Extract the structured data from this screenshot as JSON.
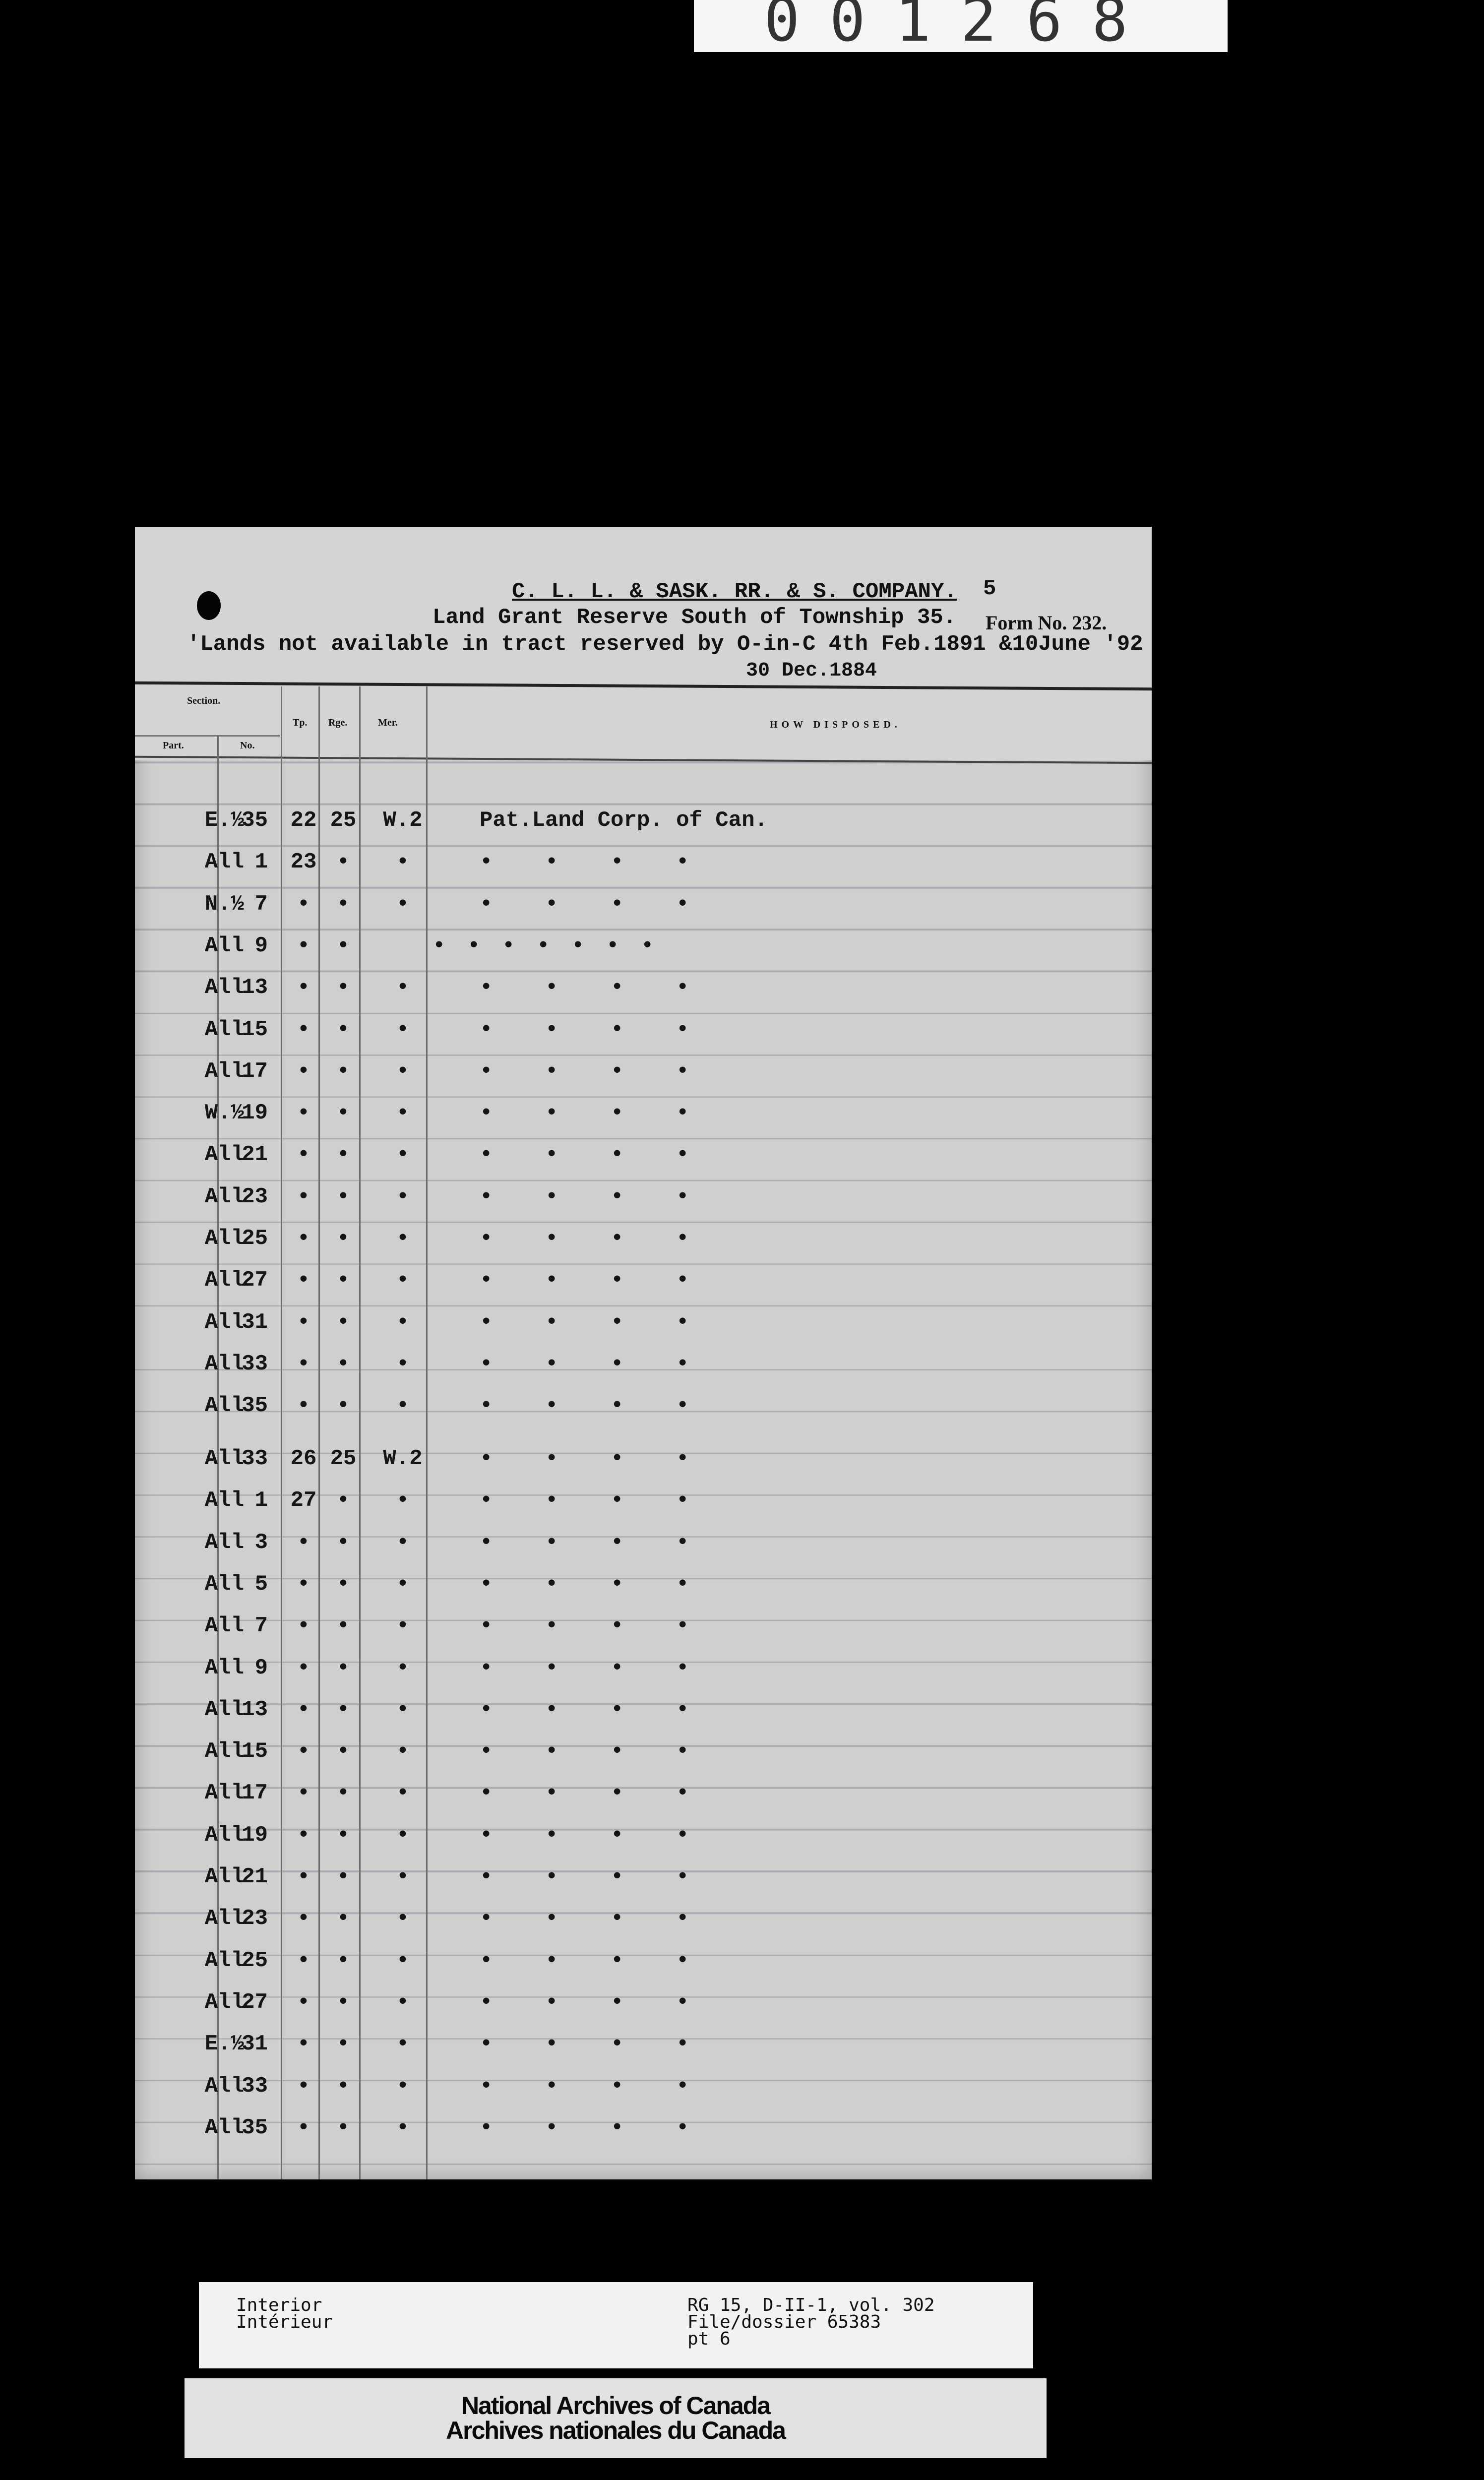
{
  "reference_number": "001268",
  "header": {
    "company": "C. L. L. & SASK. RR. & S. COMPANY.",
    "page_number": "5",
    "subtitle": "Land Grant Reserve South of Township 35.",
    "form_number": "Form No. 232.",
    "lands_note": "'Lands not available in tract reserved by O-in-C 4th Feb.1891 &10June '92",
    "date_insert": "30 Dec.1884"
  },
  "columns": {
    "section": "Section.",
    "part": "Part.",
    "no": "No.",
    "tp": "Tp.",
    "rge": "Rge.",
    "mer": "Mer.",
    "how_disposed": "HOW DISPOSED."
  },
  "groups": [
    {
      "rows": [
        {
          "part": "E.½",
          "no": "35",
          "tp": "22",
          "rge": "25",
          "mer": "W.2",
          "disposed": "Pat.Land Corp. of Can."
        },
        {
          "part": "All",
          "no": "1",
          "tp": "23",
          "rge": "•",
          "mer": "•",
          "disposed": "• • • •"
        },
        {
          "part": "N.½",
          "no": "7",
          "tp": "•",
          "rge": "•",
          "mer": "•",
          "disposed": "• • • •"
        },
        {
          "part": "All",
          "no": "9",
          "tp": "•",
          "rge": "•",
          "mer": "",
          "disposed": "• • • • • • •"
        },
        {
          "part": "All",
          "no": "13",
          "tp": "•",
          "rge": "•",
          "mer": "•",
          "disposed": "• • • •"
        },
        {
          "part": "All",
          "no": "15",
          "tp": "•",
          "rge": "•",
          "mer": "•",
          "disposed": "• • • •"
        },
        {
          "part": "All",
          "no": "17",
          "tp": "•",
          "rge": "•",
          "mer": "•",
          "disposed": "• • • •"
        },
        {
          "part": "W.½",
          "no": "19",
          "tp": "•",
          "rge": "•",
          "mer": "•",
          "disposed": "• • • •"
        },
        {
          "part": "All",
          "no": "21",
          "tp": "•",
          "rge": "•",
          "mer": "•",
          "disposed": "• • • •"
        },
        {
          "part": "All",
          "no": "23",
          "tp": "•",
          "rge": "•",
          "mer": "•",
          "disposed": "• • • •"
        },
        {
          "part": "All",
          "no": "25",
          "tp": "•",
          "rge": "•",
          "mer": "•",
          "disposed": "• • • •"
        },
        {
          "part": "All",
          "no": "27",
          "tp": "•",
          "rge": "•",
          "mer": "•",
          "disposed": "• • • •"
        },
        {
          "part": "All",
          "no": "31",
          "tp": "•",
          "rge": "•",
          "mer": "•",
          "disposed": "• • • •"
        },
        {
          "part": "All",
          "no": "33",
          "tp": "•",
          "rge": "•",
          "mer": "•",
          "disposed": "• • • •"
        },
        {
          "part": "All",
          "no": "35",
          "tp": "•",
          "rge": "•",
          "mer": "•",
          "disposed": "• • • •"
        }
      ]
    },
    {
      "rows": [
        {
          "part": "All",
          "no": "33",
          "tp": "26",
          "rge": "25",
          "mer": "W.2",
          "disposed": "• • • •"
        },
        {
          "part": "All",
          "no": "1",
          "tp": "27",
          "rge": "•",
          "mer": "•",
          "disposed": "• • • •"
        },
        {
          "part": "All",
          "no": "3",
          "tp": "•",
          "rge": "•",
          "mer": "•",
          "disposed": "• • • •"
        },
        {
          "part": "All",
          "no": "5",
          "tp": "•",
          "rge": "•",
          "mer": "•",
          "disposed": "• • • •"
        },
        {
          "part": "All",
          "no": "7",
          "tp": "•",
          "rge": "•",
          "mer": "•",
          "disposed": "• • • •"
        },
        {
          "part": "All",
          "no": "9",
          "tp": "•",
          "rge": "•",
          "mer": "•",
          "disposed": "• • • •"
        },
        {
          "part": "All",
          "no": "13",
          "tp": "•",
          "rge": "•",
          "mer": "•",
          "disposed": "• • • •"
        },
        {
          "part": "All",
          "no": "15",
          "tp": "•",
          "rge": "•",
          "mer": "•",
          "disposed": "• • • •"
        },
        {
          "part": "All",
          "no": "17",
          "tp": "•",
          "rge": "•",
          "mer": "•",
          "disposed": "• • • •"
        },
        {
          "part": "All",
          "no": "19",
          "tp": "•",
          "rge": "•",
          "mer": "•",
          "disposed": "• • • •"
        },
        {
          "part": "All",
          "no": "21",
          "tp": "•",
          "rge": "•",
          "mer": "•",
          "disposed": "• • • •"
        },
        {
          "part": "All",
          "no": "23",
          "tp": "•",
          "rge": "•",
          "mer": "•",
          "disposed": "• • • •"
        },
        {
          "part": "All",
          "no": "25",
          "tp": "•",
          "rge": "•",
          "mer": "•",
          "disposed": "• • • •"
        },
        {
          "part": "All",
          "no": "27",
          "tp": "•",
          "rge": "•",
          "mer": "•",
          "disposed": "• • • •"
        },
        {
          "part": "E.½",
          "no": "31",
          "tp": "•",
          "rge": "•",
          "mer": "•",
          "disposed": "• • • •"
        },
        {
          "part": "All",
          "no": "33",
          "tp": "•",
          "rge": "•",
          "mer": "•",
          "disposed": "• • • •"
        },
        {
          "part": "All",
          "no": "35",
          "tp": "•",
          "rge": "•",
          "mer": "•",
          "disposed": "• • • •"
        }
      ]
    }
  ],
  "archive_label": {
    "department_en": "Interior",
    "department_fr": "Intérieur",
    "reference": "RG 15, D-II-1, vol. 302",
    "file": "File/dossier 65383",
    "part": "pt 6"
  },
  "archive_stamp": {
    "line_en": "National Archives of Canada",
    "line_fr": "Archives nationales du Canada"
  }
}
